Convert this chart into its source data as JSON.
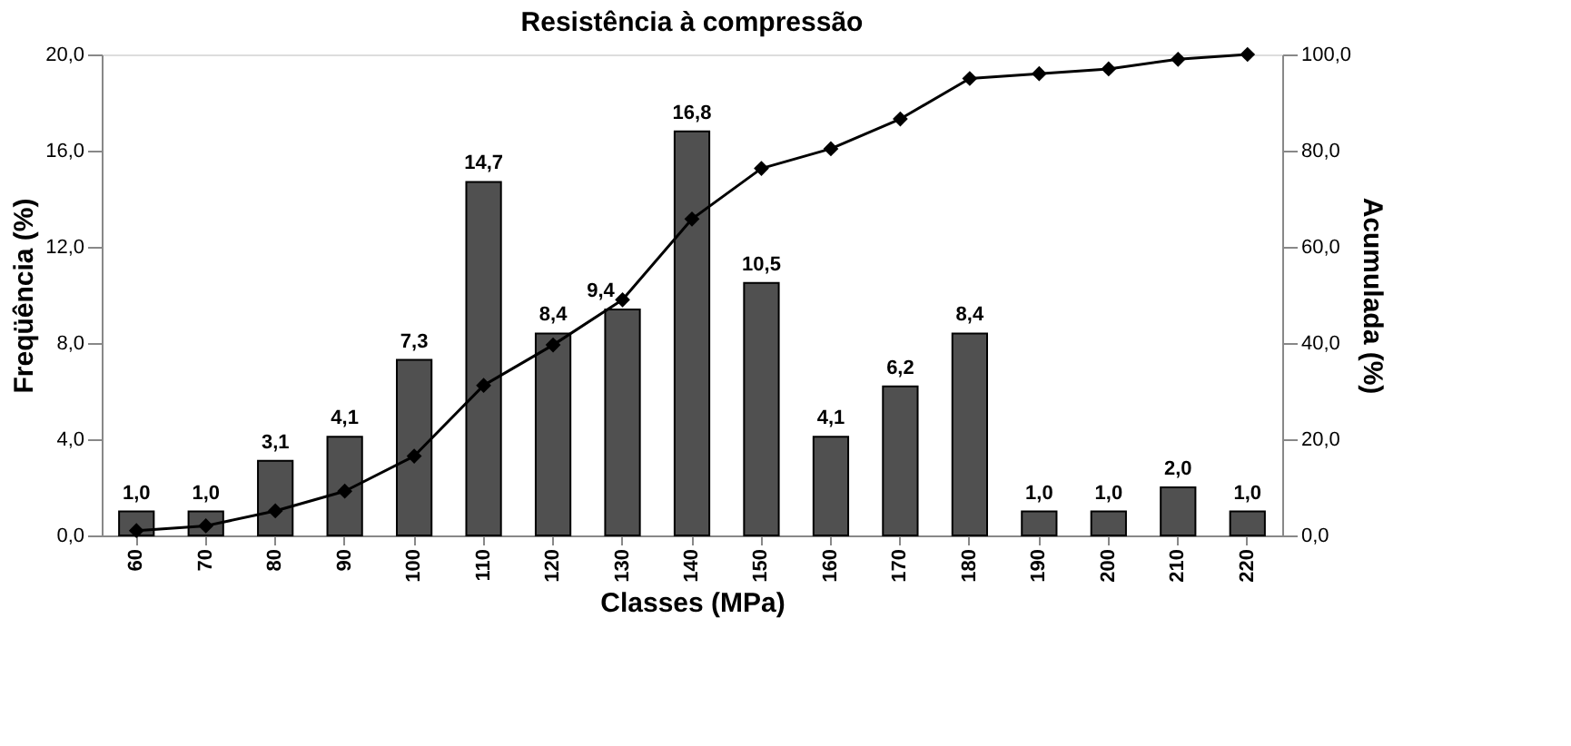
{
  "chart_data": {
    "type": "bar",
    "title": "Resistência à compressão",
    "xlabel": "Classes (MPa)",
    "ylabel": "Freqüência (%)",
    "y2label": "Acumulada (%)",
    "categories": [
      "60",
      "70",
      "80",
      "90",
      "100",
      "110",
      "120",
      "130",
      "140",
      "150",
      "160",
      "170",
      "180",
      "190",
      "200",
      "210",
      "220"
    ],
    "series": [
      {
        "color": "#505050",
        "values": [
          1.0,
          1.0,
          3.1,
          4.1,
          7.3,
          14.7,
          8.4,
          9.4,
          16.8,
          10.5,
          4.1,
          6.2,
          8.4,
          1.0,
          1.0,
          2.0,
          1.0
        ],
        "value_labels": [
          "1,0",
          "1,0",
          "3,1",
          "4,1",
          "7,3",
          "14,7",
          "8,4",
          "9,4",
          "16,8",
          "10,5",
          "4,1",
          "6,2",
          "8,4",
          "1,0",
          "1,0",
          "2,0",
          "1,0"
        ]
      },
      {
        "type": "line",
        "axis": "y2",
        "color": "#000000",
        "marker": "diamond",
        "values": [
          1.0,
          2.0,
          5.1,
          9.2,
          16.5,
          31.2,
          39.6,
          49.0,
          65.8,
          76.3,
          80.4,
          86.6,
          95.0,
          96.0,
          97.0,
          99.0,
          100.0
        ]
      }
    ],
    "ylim": [
      0,
      20
    ],
    "yticks": [
      {
        "value": 0,
        "label": "0,0"
      },
      {
        "value": 4,
        "label": "4,0"
      },
      {
        "value": 8,
        "label": "8,0"
      },
      {
        "value": 12,
        "label": "12,0"
      },
      {
        "value": 16,
        "label": "16,0"
      },
      {
        "value": 20,
        "label": "20,0"
      }
    ],
    "y2lim": [
      0,
      100
    ],
    "y2ticks": [
      {
        "value": 0,
        "label": "0,0"
      },
      {
        "value": 20,
        "label": "20,0"
      },
      {
        "value": 40,
        "label": "40,0"
      },
      {
        "value": 60,
        "label": "60,0"
      },
      {
        "value": 80,
        "label": "80,0"
      },
      {
        "value": 100,
        "label": "100,0"
      }
    ],
    "grid": false
  }
}
